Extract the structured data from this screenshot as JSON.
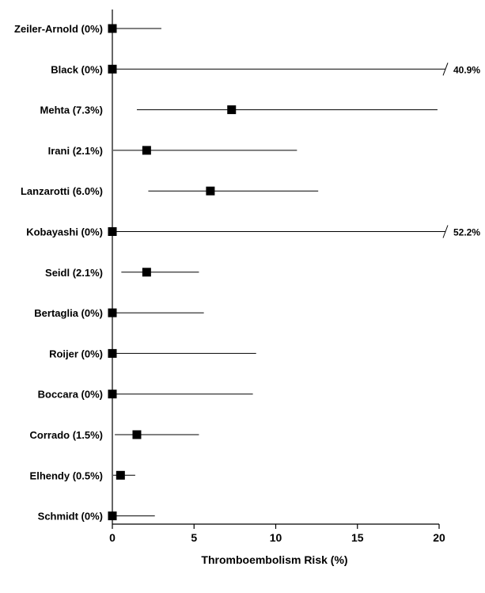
{
  "chart_data": {
    "type": "forest",
    "xlabel": "Thromboembolism Risk (%)",
    "xlim": [
      0,
      20
    ],
    "xticks": [
      0,
      5,
      10,
      15,
      20
    ],
    "grid": false,
    "studies": [
      {
        "label": "Zeiler-Arnold (0%)",
        "estimate": 0,
        "lower": 0,
        "upper": 3.0
      },
      {
        "label": "Black (0%)",
        "estimate": 0,
        "lower": 0,
        "upper": 40.9,
        "truncated_label": "40.9%"
      },
      {
        "label": "Mehta (7.3%)",
        "estimate": 7.3,
        "lower": 1.5,
        "upper": 19.9
      },
      {
        "label": "Irani (2.1%)",
        "estimate": 2.1,
        "lower": 0.05,
        "upper": 11.3
      },
      {
        "label": "Lanzarotti (6.0%)",
        "estimate": 6.0,
        "lower": 2.2,
        "upper": 12.6
      },
      {
        "label": "Kobayashi (0%)",
        "estimate": 0,
        "lower": 0,
        "upper": 52.2,
        "truncated_label": "52.2%"
      },
      {
        "label": "Seidl (2.1%)",
        "estimate": 2.1,
        "lower": 0.55,
        "upper": 5.3
      },
      {
        "label": "Bertaglia (0%)",
        "estimate": 0,
        "lower": 0,
        "upper": 5.6
      },
      {
        "label": "Roijer (0%)",
        "estimate": 0,
        "lower": 0,
        "upper": 8.8
      },
      {
        "label": "Boccara (0%)",
        "estimate": 0,
        "lower": 0,
        "upper": 8.6
      },
      {
        "label": "Corrado (1.5%)",
        "estimate": 1.5,
        "lower": 0.15,
        "upper": 5.3
      },
      {
        "label": "Elhendy (0.5%)",
        "estimate": 0.5,
        "lower": 0.05,
        "upper": 1.4
      },
      {
        "label": "Schmidt (0%)",
        "estimate": 0,
        "lower": 0,
        "upper": 2.6
      }
    ]
  }
}
